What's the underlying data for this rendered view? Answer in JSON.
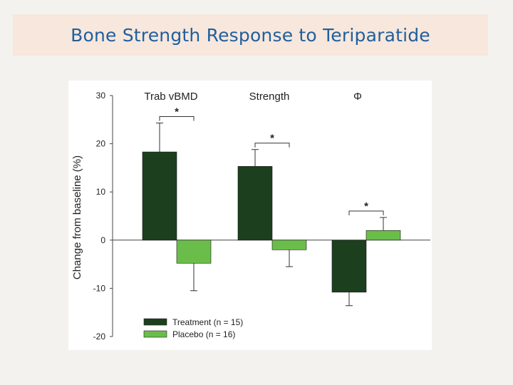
{
  "slide": {
    "title": "Bone Strength Response to Teriparatide"
  },
  "chart_data": {
    "type": "bar",
    "title": "",
    "categories": [
      "Trab vBMD",
      "Strength",
      "Φ"
    ],
    "series": [
      {
        "name": "Treatment",
        "legend_label": "Treatment (n = 15)",
        "color": "#1c3f1e",
        "values": [
          18.3,
          15.3,
          -10.8
        ],
        "errors": [
          6.0,
          3.5,
          2.8
        ]
      },
      {
        "name": "Placebo",
        "legend_label": "Placebo (n = 16)",
        "color": "#6bbd4a",
        "values": [
          -4.8,
          -2.0,
          2.0
        ],
        "errors": [
          5.7,
          3.5,
          2.7
        ]
      }
    ],
    "significance": [
      "*",
      "*",
      "*"
    ],
    "ylabel": "Change from baseline (%)",
    "xlabel": "",
    "ylim": [
      -20,
      30
    ],
    "yticks": [
      "30",
      "20",
      "10",
      "0",
      "-10",
      "-20"
    ],
    "ytick_values": [
      30,
      20,
      10,
      0,
      -10,
      -20
    ],
    "legend_position": "bottom-left"
  }
}
